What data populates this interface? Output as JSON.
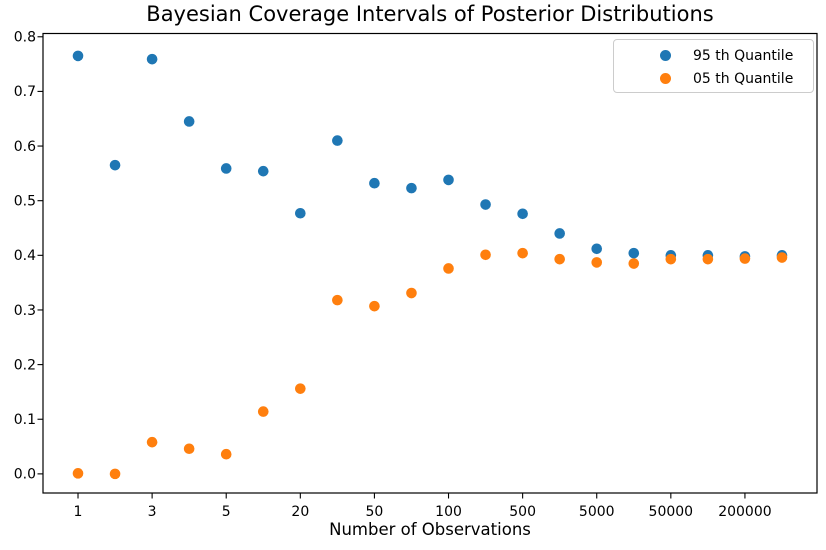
{
  "legend": {
    "entries": [
      {
        "label": "95 th Quantile",
        "color": "#1f77b4"
      },
      {
        "label": "05 th Quantile",
        "color": "#ff7f0e"
      }
    ],
    "position": "upper right"
  },
  "chart_data": {
    "type": "scatter",
    "title": "Bayesian Coverage Intervals of Posterior Distributions",
    "xlabel": "Number of Observations",
    "ylabel": "",
    "grid": false,
    "x_scale": "categorical, 20 evenly spaced points, tick labels on every other point",
    "n_points": 20,
    "x_tick_indices": [
      0,
      2,
      4,
      6,
      8,
      10,
      12,
      14,
      16,
      18
    ],
    "x_tick_labels": [
      "1",
      "3",
      "5",
      "20",
      "50",
      "100",
      "500",
      "5000",
      "50000",
      "200000"
    ],
    "y_ticks": [
      0.0,
      0.1,
      0.2,
      0.3,
      0.4,
      0.5,
      0.6,
      0.7,
      0.8
    ],
    "y_tick_labels": [
      "0.0",
      "0.1",
      "0.2",
      "0.3",
      "0.4",
      "0.5",
      "0.6",
      "0.7",
      "0.8"
    ],
    "xlim_index": [
      -0.945,
      19.945
    ],
    "ylim": [
      -0.035,
      0.806
    ],
    "marker": "circle",
    "marker_radius_px": 5.3,
    "series": [
      {
        "name": "95 th Quantile",
        "color": "#1f77b4",
        "values": [
          0.765,
          0.565,
          0.759,
          0.645,
          0.559,
          0.554,
          0.477,
          0.61,
          0.532,
          0.523,
          0.538,
          0.493,
          0.476,
          0.44,
          0.412,
          0.404,
          0.4,
          0.4,
          0.398,
          0.4
        ]
      },
      {
        "name": "05 th Quantile",
        "color": "#ff7f0e",
        "values": [
          0.001,
          0.0,
          0.058,
          0.046,
          0.036,
          0.114,
          0.156,
          0.318,
          0.307,
          0.331,
          0.376,
          0.401,
          0.404,
          0.393,
          0.387,
          0.385,
          0.393,
          0.393,
          0.394,
          0.396
        ]
      }
    ]
  }
}
